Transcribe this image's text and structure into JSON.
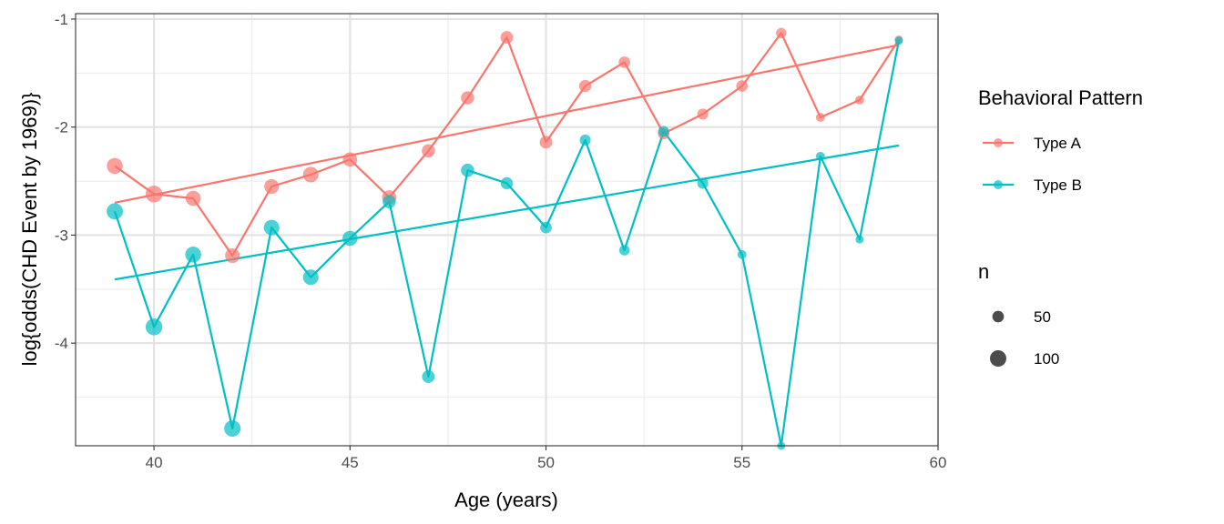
{
  "chart_data": {
    "type": "scatter",
    "xlabel": "Age (years)",
    "ylabel": "log{odds(CHD Event by 1969)}",
    "xlim": [
      38,
      60
    ],
    "ylim": [
      -4.95,
      -0.95
    ],
    "x_ticks": [
      40,
      45,
      50,
      55,
      60
    ],
    "y_ticks": [
      -4,
      -3,
      -2,
      -1
    ],
    "x_tick_labels": [
      "40",
      "45",
      "50",
      "55",
      "60"
    ],
    "y_tick_labels": [
      "-4",
      "-3",
      "-2",
      "-1"
    ],
    "grid": true,
    "legend_position": "right",
    "series": [
      {
        "name": "Type A",
        "color": "#F8766D",
        "points": [
          {
            "x": 39,
            "y": -2.36,
            "n": 95
          },
          {
            "x": 40,
            "y": -2.62,
            "n": 105
          },
          {
            "x": 41,
            "y": -2.66,
            "n": 85
          },
          {
            "x": 42,
            "y": -3.19,
            "n": 80
          },
          {
            "x": 43,
            "y": -2.55,
            "n": 80
          },
          {
            "x": 44,
            "y": -2.44,
            "n": 90
          },
          {
            "x": 45,
            "y": -2.3,
            "n": 75
          },
          {
            "x": 46,
            "y": -2.65,
            "n": 75
          },
          {
            "x": 47,
            "y": -2.22,
            "n": 65
          },
          {
            "x": 48,
            "y": -1.73,
            "n": 65
          },
          {
            "x": 49,
            "y": -1.17,
            "n": 60
          },
          {
            "x": 50,
            "y": -2.14,
            "n": 60
          },
          {
            "x": 51,
            "y": -1.62,
            "n": 55
          },
          {
            "x": 52,
            "y": -1.4,
            "n": 50
          },
          {
            "x": 53,
            "y": -2.06,
            "n": 50
          },
          {
            "x": 54,
            "y": -1.88,
            "n": 45
          },
          {
            "x": 55,
            "y": -1.62,
            "n": 50
          },
          {
            "x": 56,
            "y": -1.13,
            "n": 40
          },
          {
            "x": 57,
            "y": -1.91,
            "n": 30
          },
          {
            "x": 58,
            "y": -1.75,
            "n": 30
          },
          {
            "x": 59,
            "y": -1.19,
            "n": 25
          }
        ],
        "fit": {
          "x": [
            39,
            59
          ],
          "y": [
            -2.7,
            -1.24
          ]
        }
      },
      {
        "name": "Type B",
        "color": "#00BFC4",
        "points": [
          {
            "x": 39,
            "y": -2.78,
            "n": 100
          },
          {
            "x": 40,
            "y": -3.85,
            "n": 105
          },
          {
            "x": 41,
            "y": -3.18,
            "n": 95
          },
          {
            "x": 42,
            "y": -4.79,
            "n": 100
          },
          {
            "x": 43,
            "y": -2.93,
            "n": 90
          },
          {
            "x": 44,
            "y": -3.39,
            "n": 90
          },
          {
            "x": 45,
            "y": -3.03,
            "n": 85
          },
          {
            "x": 46,
            "y": -2.69,
            "n": 65
          },
          {
            "x": 47,
            "y": -4.31,
            "n": 60
          },
          {
            "x": 48,
            "y": -2.4,
            "n": 65
          },
          {
            "x": 49,
            "y": -2.52,
            "n": 55
          },
          {
            "x": 50,
            "y": -2.93,
            "n": 50
          },
          {
            "x": 51,
            "y": -2.12,
            "n": 45
          },
          {
            "x": 52,
            "y": -3.14,
            "n": 40
          },
          {
            "x": 53,
            "y": -2.04,
            "n": 45
          },
          {
            "x": 54,
            "y": -2.52,
            "n": 45
          },
          {
            "x": 55,
            "y": -3.18,
            "n": 30
          },
          {
            "x": 56,
            "y": -4.95,
            "n": 25
          },
          {
            "x": 57,
            "y": -2.27,
            "n": 30
          },
          {
            "x": 58,
            "y": -3.04,
            "n": 25
          },
          {
            "x": 59,
            "y": -1.2,
            "n": 25
          }
        ],
        "fit": {
          "x": [
            39,
            59
          ],
          "y": [
            -3.41,
            -2.17
          ]
        }
      }
    ],
    "legend": {
      "color_title": "Behavioral Pattern",
      "color_entries": [
        "Type A",
        "Type B"
      ],
      "size_title": "n",
      "size_entries": [
        {
          "label": "50",
          "value": 50
        },
        {
          "label": "100",
          "value": 100
        }
      ]
    }
  }
}
